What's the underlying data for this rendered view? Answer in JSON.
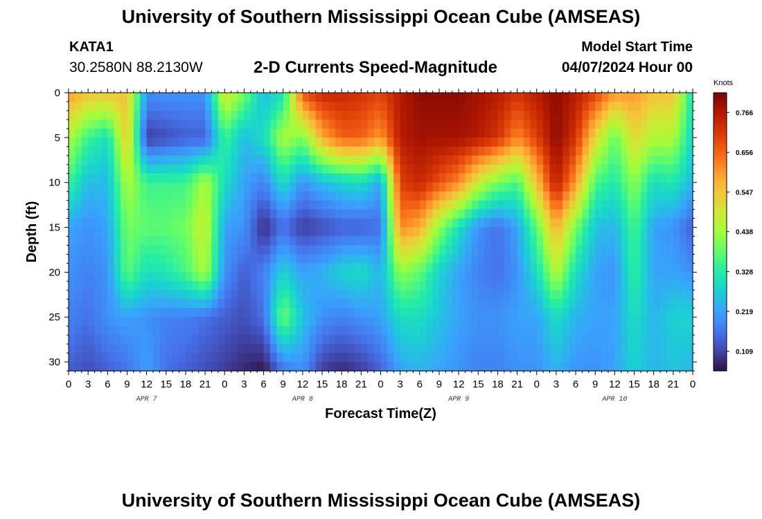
{
  "title": "University of Southern Mississippi Ocean Cube (AMSEAS)",
  "station": {
    "id": "KATA1",
    "coords": "30.2580N  88.2130W"
  },
  "subtitle": "2-D Currents Speed-Magnitude",
  "model_start": {
    "label": "Model Start Time",
    "value": "04/07/2024 Hour 00"
  },
  "footer_title": "University of Southern Mississippi Ocean Cube (AMSEAS)",
  "colors": {
    "colormap": [
      "#30123b",
      "#4145ab",
      "#4675ed",
      "#39a2fc",
      "#1bcfd4",
      "#24eca6",
      "#61fc6c",
      "#a4fc3b",
      "#d1e834",
      "#f3c63a",
      "#fe9b2d",
      "#f36315",
      "#d93806",
      "#b11901",
      "#7a0403"
    ]
  },
  "chart_data": {
    "type": "heatmap",
    "xlabel": "Forecast Time(Z)",
    "ylabel": "Depth (ft)",
    "xlim": [
      0,
      96
    ],
    "ylim": [
      0,
      31
    ],
    "y_inverted": true,
    "x_ticks": [
      0,
      3,
      6,
      9,
      12,
      15,
      18,
      21,
      24,
      27,
      30,
      33,
      36,
      39,
      42,
      45,
      48,
      51,
      54,
      57,
      60,
      63,
      66,
      69,
      72,
      75,
      78,
      81,
      84,
      87,
      90,
      93,
      96
    ],
    "x_tick_labels": [
      "0",
      "3",
      "6",
      "9",
      "12",
      "15",
      "18",
      "21",
      "0",
      "3",
      "6",
      "9",
      "12",
      "15",
      "18",
      "21",
      "0",
      "3",
      "6",
      "9",
      "12",
      "15",
      "18",
      "21",
      "0",
      "3",
      "6",
      "9",
      "12",
      "15",
      "18",
      "21",
      "0"
    ],
    "y_ticks": [
      0,
      5,
      10,
      15,
      20,
      25,
      30
    ],
    "y_tick_labels": [
      "0",
      "5",
      "10",
      "15",
      "20",
      "25",
      "30"
    ],
    "day_labels": [
      {
        "text": "APR 7",
        "x": 12
      },
      {
        "text": "APR 8",
        "x": 36
      },
      {
        "text": "APR 9",
        "x": 60
      },
      {
        "text": "APR 10",
        "x": 84
      }
    ],
    "colorbar": {
      "unit": "Knots",
      "min": 0.055,
      "max": 0.82,
      "ticks": [
        0.109,
        0.219,
        0.328,
        0.438,
        0.547,
        0.656,
        0.766
      ]
    },
    "grid": {
      "times": [
        0,
        3,
        6,
        9,
        12,
        15,
        18,
        21,
        24,
        27,
        30,
        33,
        36,
        39,
        42,
        45,
        48,
        51,
        54,
        57,
        60,
        63,
        66,
        69,
        72,
        75,
        78,
        81,
        84,
        87,
        90,
        93,
        96
      ],
      "depths": [
        0,
        5,
        10,
        15,
        20,
        25,
        31
      ],
      "values": [
        [
          0.6,
          0.55,
          0.55,
          0.55,
          0.2,
          0.2,
          0.2,
          0.2,
          0.5,
          0.4,
          0.25,
          0.3,
          0.68,
          0.74,
          0.74,
          0.72,
          0.7,
          0.76,
          0.8,
          0.8,
          0.8,
          0.78,
          0.76,
          0.72,
          0.76,
          0.8,
          0.76,
          0.7,
          0.6,
          0.6,
          0.55,
          0.55,
          0.3
        ],
        [
          0.45,
          0.35,
          0.3,
          0.55,
          0.1,
          0.12,
          0.14,
          0.14,
          0.35,
          0.25,
          0.3,
          0.45,
          0.4,
          0.58,
          0.66,
          0.66,
          0.6,
          0.76,
          0.78,
          0.78,
          0.78,
          0.76,
          0.72,
          0.62,
          0.7,
          0.8,
          0.72,
          0.52,
          0.38,
          0.52,
          0.45,
          0.45,
          0.28
        ],
        [
          0.35,
          0.25,
          0.25,
          0.45,
          0.35,
          0.35,
          0.35,
          0.45,
          0.3,
          0.22,
          0.18,
          0.3,
          0.2,
          0.25,
          0.28,
          0.3,
          0.22,
          0.7,
          0.74,
          0.68,
          0.62,
          0.48,
          0.4,
          0.36,
          0.55,
          0.76,
          0.6,
          0.36,
          0.32,
          0.42,
          0.3,
          0.32,
          0.24
        ],
        [
          0.22,
          0.2,
          0.22,
          0.4,
          0.38,
          0.38,
          0.4,
          0.48,
          0.22,
          0.2,
          0.08,
          0.16,
          0.1,
          0.12,
          0.14,
          0.14,
          0.16,
          0.62,
          0.58,
          0.42,
          0.3,
          0.2,
          0.16,
          0.22,
          0.38,
          0.58,
          0.4,
          0.26,
          0.24,
          0.36,
          0.22,
          0.2,
          0.14
        ],
        [
          0.2,
          0.18,
          0.2,
          0.38,
          0.3,
          0.32,
          0.36,
          0.45,
          0.2,
          0.14,
          0.18,
          0.28,
          0.22,
          0.24,
          0.28,
          0.3,
          0.24,
          0.42,
          0.38,
          0.28,
          0.22,
          0.18,
          0.16,
          0.2,
          0.3,
          0.46,
          0.3,
          0.22,
          0.2,
          0.34,
          0.22,
          0.22,
          0.2
        ],
        [
          0.18,
          0.16,
          0.2,
          0.22,
          0.2,
          0.18,
          0.18,
          0.16,
          0.14,
          0.12,
          0.16,
          0.4,
          0.26,
          0.2,
          0.18,
          0.2,
          0.22,
          0.3,
          0.3,
          0.26,
          0.22,
          0.2,
          0.2,
          0.22,
          0.22,
          0.3,
          0.24,
          0.22,
          0.22,
          0.3,
          0.24,
          0.28,
          0.28
        ],
        [
          0.14,
          0.12,
          0.14,
          0.16,
          0.22,
          0.16,
          0.14,
          0.12,
          0.1,
          0.08,
          0.06,
          0.16,
          0.2,
          0.1,
          0.08,
          0.1,
          0.14,
          0.22,
          0.24,
          0.22,
          0.2,
          0.18,
          0.18,
          0.2,
          0.2,
          0.24,
          0.2,
          0.2,
          0.22,
          0.28,
          0.24,
          0.26,
          0.24
        ]
      ]
    }
  }
}
